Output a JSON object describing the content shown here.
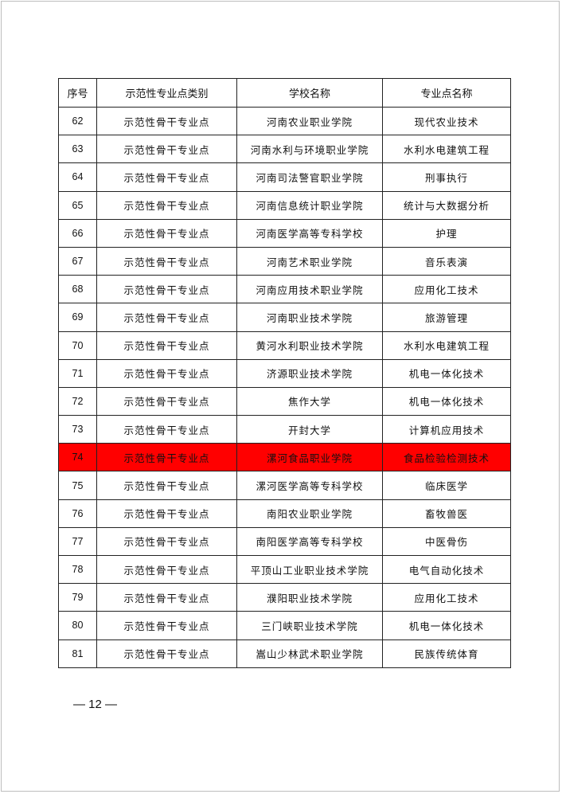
{
  "table": {
    "headers": [
      "序号",
      "示范性专业点类别",
      "学校名称",
      "专业点名称"
    ],
    "highlight_color": "#ff0000",
    "rows": [
      {
        "no": "62",
        "category": "示范性骨干专业点",
        "school": "河南农业职业学院",
        "major": "现代农业技术"
      },
      {
        "no": "63",
        "category": "示范性骨干专业点",
        "school": "河南水利与环境职业学院",
        "major": "水利水电建筑工程"
      },
      {
        "no": "64",
        "category": "示范性骨干专业点",
        "school": "河南司法警官职业学院",
        "major": "刑事执行"
      },
      {
        "no": "65",
        "category": "示范性骨干专业点",
        "school": "河南信息统计职业学院",
        "major": "统计与大数据分析"
      },
      {
        "no": "66",
        "category": "示范性骨干专业点",
        "school": "河南医学高等专科学校",
        "major": "护理"
      },
      {
        "no": "67",
        "category": "示范性骨干专业点",
        "school": "河南艺术职业学院",
        "major": "音乐表演"
      },
      {
        "no": "68",
        "category": "示范性骨干专业点",
        "school": "河南应用技术职业学院",
        "major": "应用化工技术"
      },
      {
        "no": "69",
        "category": "示范性骨干专业点",
        "school": "河南职业技术学院",
        "major": "旅游管理"
      },
      {
        "no": "70",
        "category": "示范性骨干专业点",
        "school": "黄河水利职业技术学院",
        "major": "水利水电建筑工程"
      },
      {
        "no": "71",
        "category": "示范性骨干专业点",
        "school": "济源职业技术学院",
        "major": "机电一体化技术"
      },
      {
        "no": "72",
        "category": "示范性骨干专业点",
        "school": "焦作大学",
        "major": "机电一体化技术"
      },
      {
        "no": "73",
        "category": "示范性骨干专业点",
        "school": "开封大学",
        "major": "计算机应用技术"
      },
      {
        "no": "74",
        "category": "示范性骨干专业点",
        "school": "漯河食品职业学院",
        "major": "食品检验检测技术",
        "highlighted": true
      },
      {
        "no": "75",
        "category": "示范性骨干专业点",
        "school": "漯河医学高等专科学校",
        "major": "临床医学"
      },
      {
        "no": "76",
        "category": "示范性骨干专业点",
        "school": "南阳农业职业学院",
        "major": "畜牧兽医"
      },
      {
        "no": "77",
        "category": "示范性骨干专业点",
        "school": "南阳医学高等专科学校",
        "major": "中医骨伤"
      },
      {
        "no": "78",
        "category": "示范性骨干专业点",
        "school": "平顶山工业职业技术学院",
        "major": "电气自动化技术"
      },
      {
        "no": "79",
        "category": "示范性骨干专业点",
        "school": "濮阳职业技术学院",
        "major": "应用化工技术"
      },
      {
        "no": "80",
        "category": "示范性骨干专业点",
        "school": "三门峡职业技术学院",
        "major": "机电一体化技术"
      },
      {
        "no": "81",
        "category": "示范性骨干专业点",
        "school": "嵩山少林武术职业学院",
        "major": "民族传统体育"
      }
    ]
  },
  "footer": {
    "page_number": "— 12 —"
  }
}
